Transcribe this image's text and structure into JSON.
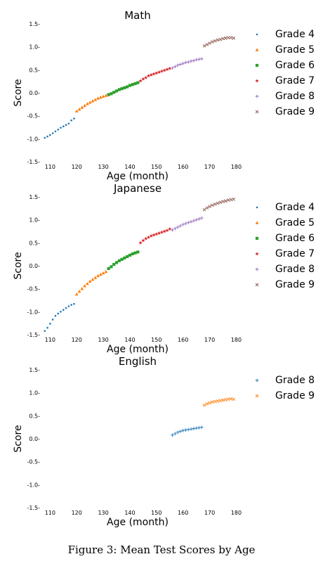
{
  "caption": "Figure 3: Mean Test Scores by Age",
  "colors": {
    "blue": "#1f77b4",
    "orange": "#ff7f0e",
    "green": "#2ca02c",
    "red": "#d62728",
    "purple": "#9467bd",
    "brown": "#8c564b"
  },
  "chart_data": [
    {
      "type": "scatter",
      "title": "Math",
      "xlabel": "Age (month)",
      "ylabel": "Score",
      "xlim": [
        107,
        182
      ],
      "ylim": [
        -1.5,
        1.5
      ],
      "xticks": [
        110,
        120,
        130,
        140,
        150,
        160,
        170,
        180
      ],
      "yticks": [
        -1.5,
        -1.0,
        -0.5,
        0.0,
        0.5,
        1.0,
        1.5
      ],
      "grid": false,
      "legend_position": "right",
      "series": [
        {
          "name": "Grade 4",
          "marker": "dot",
          "color": "blue",
          "x_start": 108,
          "x_end": 119,
          "y": [
            -0.98,
            -0.95,
            -0.92,
            -0.88,
            -0.84,
            -0.8,
            -0.76,
            -0.73,
            -0.7,
            -0.67,
            -0.6,
            -0.56
          ]
        },
        {
          "name": "Grade 5",
          "marker": "triangle",
          "color": "orange",
          "x_start": 120,
          "x_end": 131,
          "y": [
            -0.4,
            -0.36,
            -0.32,
            -0.28,
            -0.24,
            -0.21,
            -0.18,
            -0.15,
            -0.12,
            -0.1,
            -0.08,
            -0.06
          ]
        },
        {
          "name": "Grade 6",
          "marker": "square",
          "color": "green",
          "x_start": 132,
          "x_end": 143,
          "y": [
            -0.04,
            -0.02,
            0.01,
            0.04,
            0.07,
            0.09,
            0.11,
            0.13,
            0.16,
            0.18,
            0.2,
            0.22
          ]
        },
        {
          "name": "Grade 7",
          "marker": "star",
          "color": "red",
          "x_start": 144,
          "x_end": 155,
          "y": [
            0.26,
            0.3,
            0.33,
            0.37,
            0.39,
            0.41,
            0.43,
            0.45,
            0.47,
            0.49,
            0.51,
            0.53
          ]
        },
        {
          "name": "Grade 8",
          "marker": "plus",
          "color": "purple",
          "x_start": 156,
          "x_end": 167,
          "y": [
            0.54,
            0.57,
            0.6,
            0.62,
            0.64,
            0.66,
            0.67,
            0.69,
            0.7,
            0.72,
            0.73,
            0.74
          ]
        },
        {
          "name": "Grade 9",
          "marker": "x",
          "color": "brown",
          "x_start": 168,
          "x_end": 179,
          "y": [
            1.02,
            1.05,
            1.08,
            1.11,
            1.13,
            1.15,
            1.16,
            1.18,
            1.19,
            1.2,
            1.2,
            1.19
          ]
        }
      ]
    },
    {
      "type": "scatter",
      "title": "Japanese",
      "xlabel": "Age (month)",
      "ylabel": "Score",
      "xlim": [
        107,
        182
      ],
      "ylim": [
        -1.5,
        1.5
      ],
      "xticks": [
        110,
        120,
        130,
        140,
        150,
        160,
        170,
        180
      ],
      "yticks": [
        -1.5,
        -1.0,
        -0.5,
        0.0,
        0.5,
        1.0,
        1.5
      ],
      "grid": false,
      "legend_position": "right",
      "series": [
        {
          "name": "Grade 4",
          "marker": "dot",
          "color": "blue",
          "x_start": 108,
          "x_end": 119,
          "y": [
            -1.42,
            -1.35,
            -1.26,
            -1.17,
            -1.09,
            -1.04,
            -1.0,
            -0.96,
            -0.92,
            -0.88,
            -0.85,
            -0.83
          ]
        },
        {
          "name": "Grade 5",
          "marker": "triangle",
          "color": "orange",
          "x_start": 120,
          "x_end": 131,
          "y": [
            -0.62,
            -0.56,
            -0.5,
            -0.44,
            -0.39,
            -0.34,
            -0.3,
            -0.26,
            -0.22,
            -0.19,
            -0.16,
            -0.13
          ]
        },
        {
          "name": "Grade 6",
          "marker": "square",
          "color": "green",
          "x_start": 132,
          "x_end": 143,
          "y": [
            -0.06,
            -0.02,
            0.03,
            0.07,
            0.11,
            0.14,
            0.17,
            0.2,
            0.23,
            0.26,
            0.28,
            0.3
          ]
        },
        {
          "name": "Grade 7",
          "marker": "star",
          "color": "red",
          "x_start": 144,
          "x_end": 155,
          "y": [
            0.5,
            0.55,
            0.59,
            0.62,
            0.65,
            0.67,
            0.69,
            0.71,
            0.73,
            0.75,
            0.77,
            0.8
          ]
        },
        {
          "name": "Grade 8",
          "marker": "plus",
          "color": "purple",
          "x_start": 156,
          "x_end": 167,
          "y": [
            0.78,
            0.81,
            0.84,
            0.87,
            0.9,
            0.92,
            0.94,
            0.96,
            0.98,
            1.0,
            1.02,
            1.04
          ]
        },
        {
          "name": "Grade 9",
          "marker": "x",
          "color": "brown",
          "x_start": 168,
          "x_end": 179,
          "y": [
            1.22,
            1.26,
            1.29,
            1.32,
            1.34,
            1.36,
            1.38,
            1.4,
            1.41,
            1.43,
            1.44,
            1.45
          ]
        }
      ]
    },
    {
      "type": "scatter",
      "title": "English",
      "xlabel": "Age (month)",
      "ylabel": "Score",
      "xlim": [
        107,
        182
      ],
      "ylim": [
        -1.5,
        1.5
      ],
      "xticks": [
        110,
        120,
        130,
        140,
        150,
        160,
        170,
        180
      ],
      "yticks": [
        -1.5,
        -1.0,
        -0.5,
        0.0,
        0.5,
        1.0,
        1.5
      ],
      "grid": false,
      "legend_position": "right",
      "series": [
        {
          "name": "Grade 8",
          "marker": "plus",
          "color": "blue",
          "x_start": 156,
          "x_end": 167,
          "y": [
            0.08,
            0.11,
            0.14,
            0.16,
            0.18,
            0.19,
            0.2,
            0.21,
            0.22,
            0.23,
            0.24,
            0.25
          ]
        },
        {
          "name": "Grade 9",
          "marker": "x",
          "color": "orange",
          "x_start": 168,
          "x_end": 179,
          "y": [
            0.73,
            0.76,
            0.78,
            0.8,
            0.81,
            0.82,
            0.83,
            0.84,
            0.85,
            0.86,
            0.87,
            0.86
          ]
        }
      ]
    }
  ]
}
